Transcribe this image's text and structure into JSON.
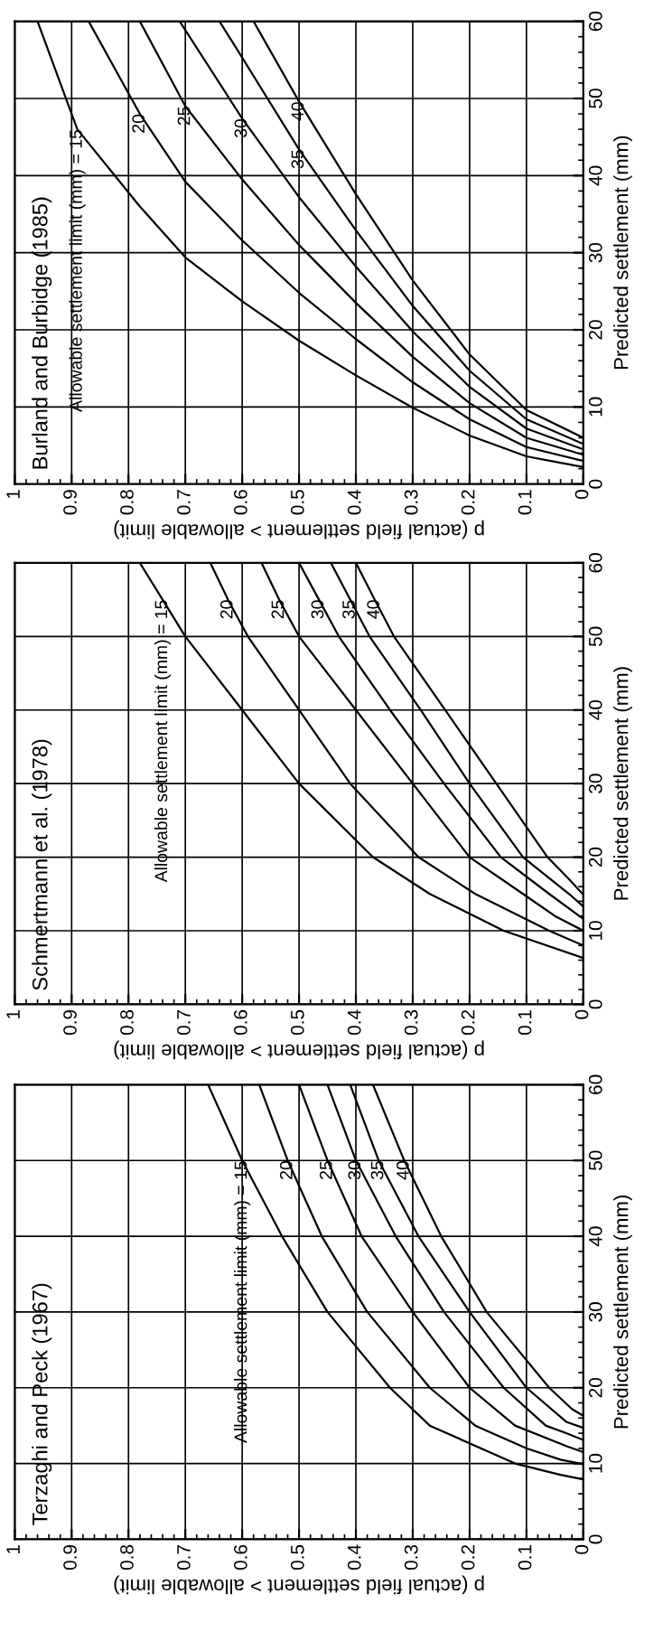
{
  "chart_data": [
    {
      "type": "line",
      "title": "Terzaghi and Peck (1967)",
      "ylabel": "Predicted settlement (mm)",
      "xlabel": "p (actual field settlement > allowable limit)",
      "ylim": [
        0,
        60
      ],
      "xlim": [
        1,
        0
      ],
      "yticks": [
        0,
        10,
        20,
        30,
        40,
        50,
        60
      ],
      "xticks": [
        1,
        0.9,
        0.8,
        0.7,
        0.6,
        0.5,
        0.4,
        0.3,
        0.2,
        0.1,
        0
      ],
      "grid": true,
      "series": [
        {
          "color": "#000000",
          "values": [
            7.9,
            8.5,
            10,
            15,
            20,
            30,
            40,
            50,
            60
          ],
          "x": [
            0,
            0.04,
            0.12,
            0.27,
            0.34,
            0.45,
            0.53,
            0.6,
            0.66
          ]
        },
        {
          "color": "#000000",
          "values": [
            9.9,
            10.5,
            12,
            15,
            20,
            30,
            40,
            50,
            60
          ],
          "x": [
            0,
            0.04,
            0.1,
            0.19,
            0.27,
            0.38,
            0.46,
            0.52,
            0.57
          ]
        },
        {
          "color": "#000000",
          "values": [
            11.5,
            12.3,
            15,
            20,
            30,
            40,
            50,
            60
          ],
          "x": [
            0,
            0.03,
            0.12,
            0.2,
            0.3,
            0.39,
            0.45,
            0.5
          ]
        },
        {
          "color": "#000000",
          "values": [
            13.1,
            14,
            15,
            20,
            30,
            40,
            50,
            60
          ],
          "x": [
            0,
            0.03,
            0.066,
            0.14,
            0.245,
            0.33,
            0.4,
            0.45
          ]
        },
        {
          "color": "#000000",
          "values": [
            14.7,
            15.5,
            20,
            30,
            40,
            50,
            60
          ],
          "x": [
            0,
            0.03,
            0.1,
            0.2,
            0.29,
            0.36,
            0.41
          ]
        },
        {
          "color": "#000000",
          "values": [
            16.3,
            17.2,
            20,
            30,
            40,
            50,
            60
          ],
          "x": [
            0,
            0.02,
            0.06,
            0.17,
            0.25,
            0.315,
            0.37
          ]
        }
      ],
      "annotations": [
        {
          "text": "Allowable settlement limit (mm) = 15",
          "y": 50,
          "x": 0.6
        },
        {
          "text": "20",
          "y": 50,
          "x": 0.52
        },
        {
          "text": "25",
          "y": 50,
          "x": 0.45
        },
        {
          "text": "30",
          "y": 50,
          "x": 0.4
        },
        {
          "text": "35",
          "y": 50,
          "x": 0.36
        },
        {
          "text": "40",
          "y": 50,
          "x": 0.315
        }
      ]
    },
    {
      "type": "line",
      "title": "Schmertmann et al. (1978)",
      "ylabel": "Predicted settlement (mm)",
      "xlabel": "p (actual field settlement > allowable limit)",
      "ylim": [
        0,
        60
      ],
      "xlim": [
        1,
        0
      ],
      "yticks": [
        0,
        10,
        20,
        30,
        40,
        50,
        60
      ],
      "xticks": [
        1,
        0.9,
        0.8,
        0.7,
        0.6,
        0.5,
        0.4,
        0.3,
        0.2,
        0.1,
        0
      ],
      "grid": true,
      "series": [
        {
          "color": "#000000",
          "values": [
            6.3,
            10,
            15,
            20,
            30,
            40,
            50,
            55,
            60
          ],
          "x": [
            0,
            0.14,
            0.27,
            0.37,
            0.5,
            0.6,
            0.7,
            0.74,
            0.78
          ]
        },
        {
          "color": "#000000",
          "values": [
            8,
            10,
            15,
            20,
            30,
            40,
            50,
            55,
            60
          ],
          "x": [
            0,
            0.06,
            0.19,
            0.29,
            0.41,
            0.5,
            0.59,
            0.625,
            0.656
          ]
        },
        {
          "color": "#000000",
          "values": [
            10,
            12,
            15,
            20,
            30,
            40,
            50,
            55,
            60
          ],
          "x": [
            0,
            0.05,
            0.106,
            0.2,
            0.3,
            0.4,
            0.5,
            0.535,
            0.566
          ]
        },
        {
          "color": "#000000",
          "values": [
            11.6,
            15,
            20,
            30,
            40,
            50,
            55,
            60
          ],
          "x": [
            0,
            0.06,
            0.145,
            0.245,
            0.34,
            0.43,
            0.465,
            0.5
          ]
        },
        {
          "color": "#000000",
          "values": [
            13.3,
            15,
            20,
            30,
            40,
            50,
            55,
            60
          ],
          "x": [
            0,
            0.025,
            0.106,
            0.2,
            0.286,
            0.376,
            0.41,
            0.444
          ]
        },
        {
          "color": "#000000",
          "values": [
            14.9,
            17,
            20,
            30,
            40,
            50,
            55,
            60
          ],
          "x": [
            0,
            0.025,
            0.063,
            0.153,
            0.243,
            0.333,
            0.367,
            0.4
          ]
        }
      ],
      "annotations": [
        {
          "text": "Allowable settlement limit (mm) = 15",
          "y": 55,
          "x": 0.74
        },
        {
          "text": "20",
          "y": 55,
          "x": 0.625
        },
        {
          "text": "25",
          "y": 55,
          "x": 0.535
        },
        {
          "text": "30",
          "y": 55,
          "x": 0.465
        },
        {
          "text": "35",
          "y": 55,
          "x": 0.41
        },
        {
          "text": "40",
          "y": 55,
          "x": 0.367
        }
      ]
    },
    {
      "type": "line",
      "title": "Burland and Burbidge (1985)",
      "ylabel": "Predicted settlement (mm)",
      "xlabel": "p (actual field settlement > allowable limit)",
      "ylim": [
        0,
        60
      ],
      "xlim": [
        1,
        0
      ],
      "yticks": [
        0,
        10,
        20,
        30,
        40,
        50,
        60
      ],
      "xticks": [
        1,
        0.9,
        0.8,
        0.7,
        0.6,
        0.5,
        0.4,
        0.3,
        0.2,
        0.1,
        0
      ],
      "grid": true,
      "series": [
        {
          "color": "#000000",
          "values": [
            2.2,
            3.6,
            6.3,
            9.9,
            14.1,
            18.6,
            23.7,
            29.4,
            36,
            46,
            60
          ],
          "x": [
            0,
            0.1,
            0.2,
            0.3,
            0.4,
            0.5,
            0.6,
            0.7,
            0.78,
            0.89,
            0.96
          ]
        },
        {
          "color": "#000000",
          "values": [
            3,
            4.8,
            8.4,
            13.2,
            18.8,
            24.8,
            31.6,
            39.2,
            48,
            60
          ],
          "x": [
            0,
            0.1,
            0.2,
            0.3,
            0.4,
            0.5,
            0.6,
            0.7,
            0.78,
            0.87
          ]
        },
        {
          "color": "#000000",
          "values": [
            3.8,
            6,
            10.5,
            16.5,
            23.5,
            31,
            39.5,
            49,
            60
          ],
          "x": [
            0,
            0.1,
            0.2,
            0.3,
            0.4,
            0.5,
            0.6,
            0.7,
            0.78
          ]
        },
        {
          "color": "#000000",
          "values": [
            4.5,
            7.2,
            12.6,
            19.8,
            28.2,
            37.2,
            47.4,
            60
          ],
          "x": [
            0,
            0.1,
            0.2,
            0.3,
            0.4,
            0.5,
            0.6,
            0.71
          ]
        },
        {
          "color": "#000000",
          "values": [
            5.2,
            8.4,
            14.7,
            23.1,
            32.9,
            43.4,
            55.3,
            60
          ],
          "x": [
            0,
            0.1,
            0.2,
            0.3,
            0.4,
            0.5,
            0.6,
            0.64
          ]
        },
        {
          "color": "#000000",
          "values": [
            6,
            9.6,
            16.8,
            26.4,
            37.6,
            49.6,
            60
          ],
          "x": [
            0,
            0.1,
            0.2,
            0.3,
            0.4,
            0.5,
            0.58
          ]
        }
      ],
      "annotations": [
        {
          "text": "Allowable settlement limit (mm) = 15",
          "y": 46,
          "x": 0.89
        },
        {
          "text": "20",
          "y": 48,
          "x": 0.78
        },
        {
          "text": "25",
          "y": 49,
          "x": 0.7
        },
        {
          "text": "30",
          "y": 47.4,
          "x": 0.6
        },
        {
          "text": "35",
          "y": 43.4,
          "x": 0.5
        },
        {
          "text": "40",
          "y": 49.6,
          "x": 0.5
        }
      ]
    }
  ]
}
